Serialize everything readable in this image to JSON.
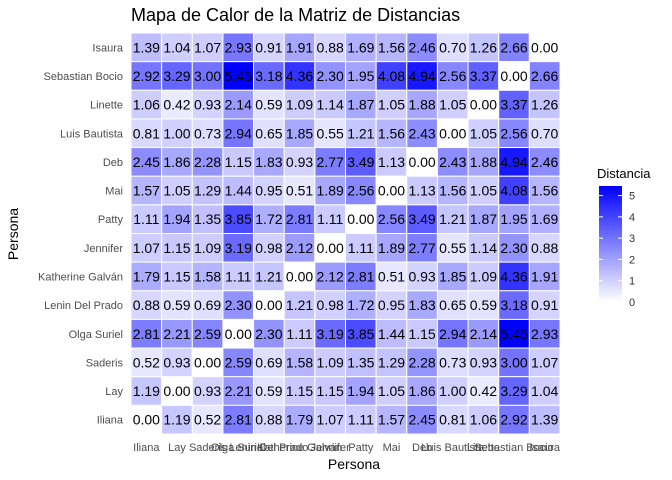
{
  "chart_data": {
    "type": "heatmap",
    "title": "Mapa de Calor de la Matriz de Distancias",
    "xlabel": "Persona",
    "ylabel": "Persona",
    "x_categories": [
      "Iliana",
      "Lay",
      "Saderis",
      "Olga Suriel",
      "Lenin Del Prado",
      "Katherine Galván",
      "Jennifer",
      "Patty",
      "Mai",
      "Deb",
      "Luis Bautista",
      "Linette",
      "Sebastian Bocio",
      "Isaura"
    ],
    "y_categories_top_to_bottom": [
      "Isaura",
      "Sebastian Bocio",
      "Linette",
      "Luis Bautista",
      "Deb",
      "Mai",
      "Patty",
      "Jennifer",
      "Katherine Galván",
      "Lenin Del Prado",
      "Olga Suriel",
      "Saderis",
      "Lay",
      "Iliana"
    ],
    "values": [
      [
        "1.39",
        "1.04",
        "1.07",
        "2.93",
        "0.91",
        "1.91",
        "0.88",
        "1.69",
        "1.56",
        "2.46",
        "0.70",
        "1.26",
        "2.66",
        "0.00"
      ],
      [
        "2.92",
        "3.29",
        "3.00",
        "5.45",
        "3.18",
        "4.36",
        "2.30",
        "1.95",
        "4.08",
        "4.94",
        "2.56",
        "3.37",
        "0.00",
        "2.66"
      ],
      [
        "1.06",
        "0.42",
        "0.93",
        "2.14",
        "0.59",
        "1.09",
        "1.14",
        "1.87",
        "1.05",
        "1.88",
        "1.05",
        "0.00",
        "3.37",
        "1.26"
      ],
      [
        "0.81",
        "1.00",
        "0.73",
        "2.94",
        "0.65",
        "1.85",
        "0.55",
        "1.21",
        "1.56",
        "2.43",
        "0.00",
        "1.05",
        "2.56",
        "0.70"
      ],
      [
        "2.45",
        "1.86",
        "2.28",
        "1.15",
        "1.83",
        "0.93",
        "2.77",
        "3.49",
        "1.13",
        "0.00",
        "2.43",
        "1.88",
        "4.94",
        "2.46"
      ],
      [
        "1.57",
        "1.05",
        "1.29",
        "1.44",
        "0.95",
        "0.51",
        "1.89",
        "2.56",
        "0.00",
        "1.13",
        "1.56",
        "1.05",
        "4.08",
        "1.56"
      ],
      [
        "1.11",
        "1.94",
        "1.35",
        "3.85",
        "1.72",
        "2.81",
        "1.11",
        "0.00",
        "2.56",
        "3.49",
        "1.21",
        "1.87",
        "1.95",
        "1.69"
      ],
      [
        "1.07",
        "1.15",
        "1.09",
        "3.19",
        "0.98",
        "2.12",
        "0.00",
        "1.11",
        "1.89",
        "2.77",
        "0.55",
        "1.14",
        "2.30",
        "0.88"
      ],
      [
        "1.79",
        "1.15",
        "1.58",
        "1.11",
        "1.21",
        "0.00",
        "2.12",
        "2.81",
        "0.51",
        "0.93",
        "1.85",
        "1.09",
        "4.36",
        "1.91"
      ],
      [
        "0.88",
        "0.59",
        "0.69",
        "2.30",
        "0.00",
        "1.21",
        "0.98",
        "1.72",
        "0.95",
        "1.83",
        "0.65",
        "0.59",
        "3.18",
        "0.91"
      ],
      [
        "2.81",
        "2.21",
        "2.59",
        "0.00",
        "2.30",
        "1.11",
        "3.19",
        "3.85",
        "1.44",
        "1.15",
        "2.94",
        "2.14",
        "5.45",
        "2.93"
      ],
      [
        "0.52",
        "0.93",
        "0.00",
        "2.59",
        "0.69",
        "1.58",
        "1.09",
        "1.35",
        "1.29",
        "2.28",
        "0.73",
        "0.93",
        "3.00",
        "1.07"
      ],
      [
        "1.19",
        "0.00",
        "0.93",
        "2.21",
        "0.59",
        "1.15",
        "1.15",
        "1.94",
        "1.05",
        "1.86",
        "1.00",
        "0.42",
        "3.29",
        "1.04"
      ],
      [
        "0.00",
        "1.19",
        "0.52",
        "2.81",
        "0.88",
        "1.79",
        "1.07",
        "1.11",
        "1.57",
        "2.45",
        "0.81",
        "1.06",
        "2.92",
        "1.39"
      ]
    ],
    "color_scale": {
      "low": "#ffffff",
      "high": "#0000ff",
      "min": 0,
      "max": 5.45
    },
    "legend": {
      "title": "Distancia",
      "ticks": [
        "0",
        "1",
        "2",
        "3",
        "4",
        "5"
      ],
      "position": "right"
    },
    "grid": true
  }
}
